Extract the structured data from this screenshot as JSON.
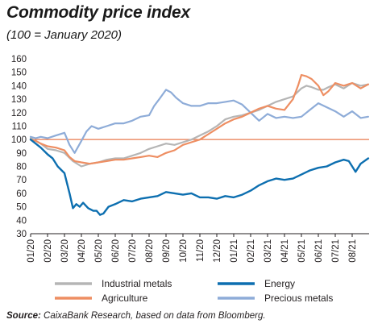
{
  "title": "Commodity price index",
  "subtitle": "(100 = January 2020)",
  "source_label": "Source:",
  "source_text": "CaixaBank Research, based on data from Bloomberg.",
  "chart_data": {
    "type": "line",
    "title": "Commodity price index",
    "subtitle": "(100 = January 2020)",
    "x_tick_labels": [
      "01/20",
      "02/20",
      "03/20",
      "04/20",
      "05/20",
      "06/20",
      "07/20",
      "08/20",
      "09/20",
      "10/20",
      "11/20",
      "12/20",
      "01/21",
      "02/21",
      "03/21",
      "04/21",
      "05/21",
      "06/21",
      "07/21",
      "08/21"
    ],
    "ylim": [
      30,
      160
    ],
    "yticks": [
      30,
      40,
      50,
      60,
      70,
      80,
      90,
      100,
      110,
      120,
      130,
      140,
      150,
      160
    ],
    "reference_line": 100,
    "grid": false,
    "legend_position": "bottom",
    "colors": {
      "Industrial metals": "#b5b5b5",
      "Energy": "#0d6fb0",
      "Agriculture": "#ee8e62",
      "Precious metals": "#8eacd8",
      "reference": "#e87a4f"
    },
    "series": [
      {
        "name": "Industrial metals",
        "x": [
          0,
          0.3,
          0.6,
          1.0,
          1.5,
          2.0,
          2.5,
          3.0,
          3.5,
          4.0,
          4.5,
          5.0,
          5.5,
          6.0,
          6.5,
          7.0,
          7.5,
          8.0,
          8.5,
          9.0,
          9.5,
          10.0,
          10.5,
          11.0,
          11.5,
          12.0,
          12.5,
          13.0,
          13.5,
          14.0,
          14.5,
          15.0,
          15.5,
          16.0,
          16.3,
          16.6,
          17.0,
          17.3,
          17.6,
          18.0,
          18.5,
          19.0,
          19.5,
          19.95
        ],
        "values": [
          101,
          99,
          97,
          93,
          92,
          90,
          84,
          80,
          82,
          83,
          85,
          86,
          86,
          88,
          90,
          93,
          95,
          97,
          96,
          98,
          100,
          103,
          106,
          110,
          115,
          117,
          118,
          120,
          122,
          125,
          128,
          130,
          132,
          138,
          140,
          139,
          137,
          137,
          139,
          141,
          138,
          142,
          140,
          141
        ]
      },
      {
        "name": "Energy",
        "x": [
          0,
          0.3,
          0.6,
          1.0,
          1.3,
          1.6,
          2.0,
          2.3,
          2.5,
          2.7,
          2.9,
          3.1,
          3.4,
          3.7,
          3.9,
          4.1,
          4.3,
          4.6,
          5.0,
          5.5,
          6.0,
          6.5,
          7.0,
          7.5,
          8.0,
          8.5,
          9.0,
          9.5,
          10.0,
          10.5,
          11.0,
          11.5,
          12.0,
          12.5,
          13.0,
          13.5,
          14.0,
          14.5,
          15.0,
          15.5,
          16.0,
          16.5,
          17.0,
          17.5,
          18.0,
          18.5,
          18.8,
          19.0,
          19.2,
          19.5,
          19.95
        ],
        "values": [
          100,
          97,
          94,
          89,
          86,
          80,
          75,
          60,
          49,
          52,
          50,
          53,
          49,
          47,
          47,
          44,
          45,
          50,
          52,
          55,
          54,
          56,
          57,
          58,
          61,
          60,
          59,
          60,
          57,
          57,
          56,
          58,
          57,
          59,
          62,
          66,
          69,
          71,
          70,
          71,
          74,
          77,
          79,
          80,
          83,
          85,
          84,
          80,
          76,
          82,
          86
        ]
      },
      {
        "name": "Agriculture",
        "x": [
          0,
          0.3,
          0.6,
          1.0,
          1.5,
          2.0,
          2.3,
          2.6,
          3.0,
          3.5,
          4.0,
          4.5,
          5.0,
          5.5,
          6.0,
          6.5,
          7.0,
          7.5,
          8.0,
          8.5,
          9.0,
          9.5,
          10.0,
          10.5,
          11.0,
          11.5,
          12.0,
          12.5,
          13.0,
          13.5,
          14.0,
          14.5,
          15.0,
          15.5,
          15.8,
          16.0,
          16.3,
          16.6,
          17.0,
          17.3,
          17.6,
          18.0,
          18.5,
          19.0,
          19.5,
          19.95
        ],
        "values": [
          100,
          99,
          97,
          95,
          94,
          92,
          87,
          84,
          83,
          82,
          83,
          84,
          85,
          85,
          86,
          87,
          88,
          87,
          90,
          92,
          96,
          98,
          100,
          104,
          108,
          112,
          115,
          117,
          120,
          123,
          125,
          123,
          122,
          130,
          140,
          148,
          147,
          145,
          140,
          133,
          136,
          142,
          140,
          142,
          138,
          141
        ]
      },
      {
        "name": "Precious metals",
        "x": [
          0,
          0.3,
          0.6,
          1.0,
          1.5,
          2.0,
          2.3,
          2.6,
          3.0,
          3.3,
          3.6,
          4.0,
          4.5,
          5.0,
          5.5,
          6.0,
          6.5,
          7.0,
          7.3,
          7.6,
          8.0,
          8.3,
          8.6,
          9.0,
          9.5,
          10.0,
          10.5,
          11.0,
          11.5,
          12.0,
          12.5,
          13.0,
          13.5,
          14.0,
          14.5,
          15.0,
          15.5,
          16.0,
          16.5,
          17.0,
          17.5,
          18.0,
          18.5,
          19.0,
          19.5,
          19.95
        ],
        "values": [
          102,
          101,
          102,
          101,
          103,
          105,
          96,
          90,
          99,
          106,
          110,
          108,
          110,
          112,
          112,
          114,
          117,
          118,
          125,
          130,
          137,
          135,
          131,
          127,
          125,
          125,
          127,
          127,
          128,
          129,
          126,
          120,
          114,
          119,
          116,
          117,
          116,
          117,
          122,
          127,
          124,
          121,
          117,
          121,
          116,
          117
        ]
      }
    ]
  },
  "legend": [
    {
      "label": "Industrial metals",
      "color": "#b5b5b5"
    },
    {
      "label": "Energy",
      "color": "#0d6fb0"
    },
    {
      "label": "Agriculture",
      "color": "#ee8e62"
    },
    {
      "label": "Precious metals",
      "color": "#8eacd8"
    }
  ]
}
